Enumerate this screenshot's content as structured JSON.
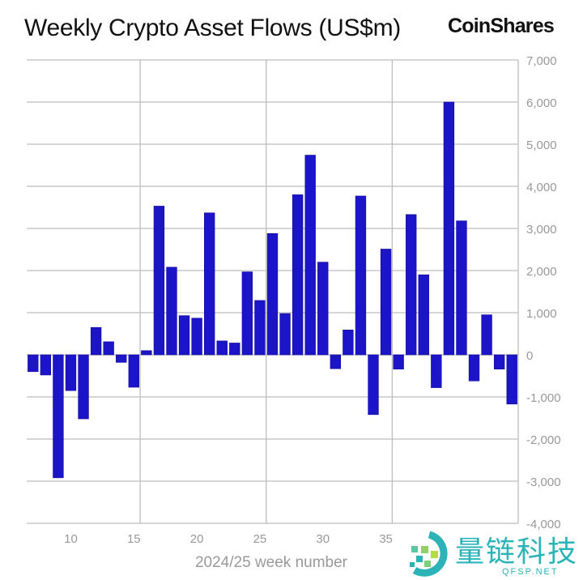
{
  "chart_data": {
    "type": "bar",
    "title": "Weekly Crypto Asset Flows (US$m)",
    "xlabel": "2024/25 week number",
    "ylabel": "",
    "x": [
      7,
      8,
      9,
      10,
      11,
      12,
      13,
      14,
      15,
      16,
      17,
      18,
      19,
      20,
      21,
      22,
      23,
      24,
      25,
      26,
      27,
      28,
      29,
      30,
      31,
      32,
      33,
      34,
      35,
      36,
      37,
      38,
      39,
      40,
      41,
      42,
      43,
      44,
      45
    ],
    "values": [
      -400,
      -480,
      -2920,
      -850,
      -1520,
      650,
      310,
      -180,
      -770,
      100,
      3530,
      2080,
      930,
      870,
      3370,
      330,
      280,
      1970,
      1290,
      2880,
      980,
      3800,
      4740,
      2200,
      -330,
      590,
      3770,
      -1420,
      2510,
      -340,
      3330,
      1900,
      -780,
      6000,
      3180,
      -620,
      950,
      -340,
      -1170
    ],
    "ylim": [
      -4000,
      7000
    ],
    "yticks": [
      "7,000",
      "6,000",
      "5,000",
      "4,000",
      "3,000",
      "2,000",
      "1,000",
      "0",
      "-1,000",
      "-2,000",
      "-3,000",
      "-4,000"
    ],
    "xticks": [
      "10",
      "15",
      "20",
      "25",
      "30",
      "35"
    ],
    "bar_color": "#1c14c8",
    "grid": true,
    "y_axis_side": "right"
  },
  "brand": "CoinShares",
  "watermark": {
    "text": "量链科技",
    "sub": "QFSP.NET"
  }
}
